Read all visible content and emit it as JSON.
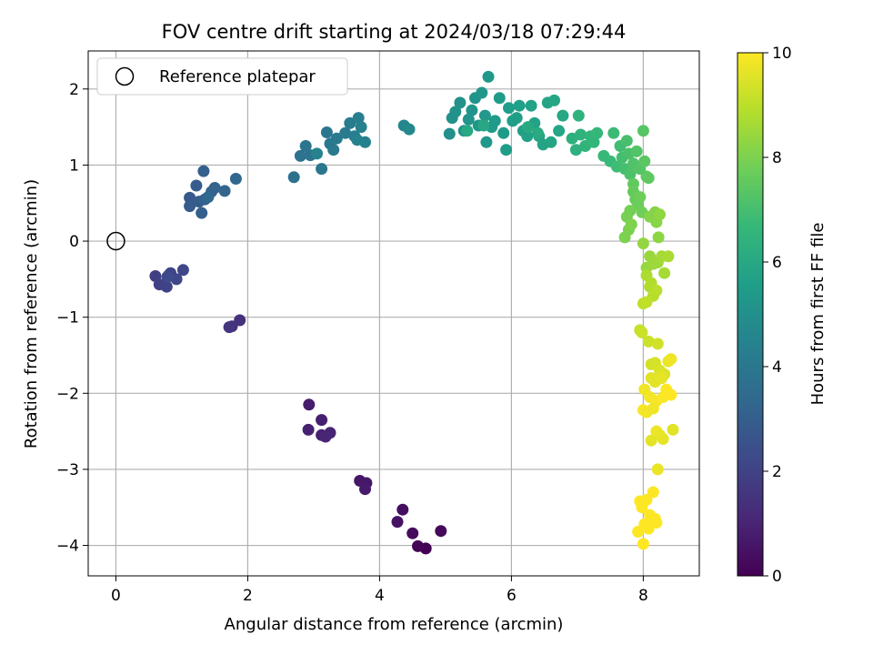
{
  "chart_data": {
    "type": "scatter",
    "title": "FOV centre drift starting at 2024/03/18 07:29:44",
    "xlabel": "Angular distance from reference (arcmin)",
    "ylabel": "Rotation from reference (arcmin)",
    "xlim": [
      -0.42,
      8.85
    ],
    "ylim": [
      -4.4,
      2.5
    ],
    "xticks": [
      0,
      2,
      4,
      6,
      8
    ],
    "yticks": [
      -4,
      -3,
      -2,
      -1,
      0,
      1,
      2
    ],
    "grid": true,
    "legend": {
      "position": "top-left",
      "entries": [
        "Reference platepar"
      ]
    },
    "colormap": "viridis",
    "colorbar": {
      "label": "Hours from first FF file",
      "range": [
        0,
        10
      ],
      "ticks": [
        0,
        2,
        4,
        6,
        8,
        10
      ],
      "stops": [
        "#440154",
        "#482878",
        "#3e4989",
        "#31688e",
        "#26828e",
        "#1f9e89",
        "#35b779",
        "#6ece58",
        "#b5de2b",
        "#fde725"
      ]
    },
    "reference_point": {
      "x": 0,
      "y": 0
    },
    "series": [
      {
        "points": [
          [
            4.7,
            -4.04,
            0.0
          ],
          [
            4.58,
            -4.01,
            0.1
          ],
          [
            4.93,
            -3.81,
            0.2
          ],
          [
            4.5,
            -3.84,
            0.3
          ],
          [
            4.35,
            -3.53,
            0.4
          ],
          [
            4.27,
            -3.69,
            0.5
          ],
          [
            3.7,
            -3.15,
            0.6
          ],
          [
            3.8,
            -3.18,
            0.65
          ],
          [
            3.78,
            -3.26,
            0.7
          ],
          [
            2.93,
            -2.15,
            0.8
          ],
          [
            3.12,
            -2.35,
            0.85
          ],
          [
            2.92,
            -2.48,
            0.9
          ],
          [
            3.12,
            -2.55,
            0.95
          ],
          [
            3.25,
            -2.52,
            1.0
          ],
          [
            3.18,
            -2.57,
            1.05
          ],
          [
            1.88,
            -1.04,
            1.4
          ],
          [
            1.76,
            -1.12,
            1.45
          ],
          [
            1.72,
            -1.13,
            1.5
          ],
          [
            0.6,
            -0.46,
            1.9
          ],
          [
            0.66,
            -0.57,
            1.95
          ],
          [
            0.77,
            -0.6,
            2.0
          ],
          [
            0.8,
            -0.45,
            2.05
          ],
          [
            0.83,
            -0.42,
            2.1
          ],
          [
            0.92,
            -0.5,
            2.15
          ],
          [
            1.02,
            -0.38,
            2.2
          ],
          [
            0.78,
            -0.47,
            2.25
          ],
          [
            1.12,
            0.57,
            2.8
          ],
          [
            1.12,
            0.46,
            2.85
          ],
          [
            1.22,
            0.73,
            2.9
          ],
          [
            1.26,
            0.52,
            2.95
          ],
          [
            1.33,
            0.92,
            3.0
          ],
          [
            1.3,
            0.37,
            3.05
          ],
          [
            1.35,
            0.55,
            3.1
          ],
          [
            1.45,
            0.65,
            3.15
          ],
          [
            1.5,
            0.7,
            3.2
          ],
          [
            1.65,
            0.66,
            3.25
          ],
          [
            1.82,
            0.82,
            3.3
          ],
          [
            1.4,
            0.58,
            3.35
          ],
          [
            2.7,
            0.84,
            3.7
          ],
          [
            2.8,
            1.12,
            3.75
          ],
          [
            2.88,
            1.25,
            3.8
          ],
          [
            2.95,
            1.13,
            3.85
          ],
          [
            3.12,
            0.95,
            3.9
          ],
          [
            3.2,
            1.43,
            3.95
          ],
          [
            3.25,
            1.28,
            4.0
          ],
          [
            3.3,
            1.2,
            4.05
          ],
          [
            3.35,
            1.35,
            4.1
          ],
          [
            3.48,
            1.42,
            4.15
          ],
          [
            3.55,
            1.55,
            4.2
          ],
          [
            3.62,
            1.38,
            4.25
          ],
          [
            3.68,
            1.62,
            4.3
          ],
          [
            3.72,
            1.5,
            4.35
          ],
          [
            3.78,
            1.3,
            4.4
          ],
          [
            3.66,
            1.33,
            4.45
          ],
          [
            3.05,
            1.15,
            4.5
          ],
          [
            4.37,
            1.52,
            4.65
          ],
          [
            4.45,
            1.47,
            4.7
          ],
          [
            5.06,
            1.41,
            5.0
          ],
          [
            5.1,
            1.62,
            5.03
          ],
          [
            5.15,
            1.7,
            5.06
          ],
          [
            5.22,
            1.82,
            5.09
          ],
          [
            5.28,
            1.45,
            5.12
          ],
          [
            5.35,
            1.6,
            5.15
          ],
          [
            5.4,
            1.72,
            5.18
          ],
          [
            5.45,
            1.88,
            5.21
          ],
          [
            5.5,
            1.52,
            5.24
          ],
          [
            5.55,
            1.95,
            5.27
          ],
          [
            5.6,
            1.65,
            5.3
          ],
          [
            5.62,
            1.3,
            5.33
          ],
          [
            5.65,
            2.16,
            5.36
          ],
          [
            5.7,
            1.5,
            5.39
          ],
          [
            5.75,
            1.58,
            5.42
          ],
          [
            5.82,
            1.88,
            5.45
          ],
          [
            5.88,
            1.42,
            5.48
          ],
          [
            5.92,
            1.2,
            5.51
          ],
          [
            5.96,
            1.75,
            5.54
          ],
          [
            6.02,
            1.58,
            5.57
          ],
          [
            6.08,
            1.62,
            5.6
          ],
          [
            6.12,
            1.78,
            5.63
          ],
          [
            6.18,
            1.45,
            5.66
          ],
          [
            6.24,
            1.38,
            5.69
          ],
          [
            6.3,
            1.78,
            5.72
          ],
          [
            6.35,
            1.55,
            5.75
          ],
          [
            6.42,
            1.38,
            5.78
          ],
          [
            6.48,
            1.27,
            5.81
          ],
          [
            6.55,
            1.82,
            5.84
          ],
          [
            6.6,
            1.3,
            5.87
          ],
          [
            6.65,
            1.85,
            5.9
          ],
          [
            6.72,
            1.45,
            5.93
          ],
          [
            6.78,
            1.65,
            5.96
          ],
          [
            5.33,
            1.45,
            5.99
          ],
          [
            5.58,
            1.52,
            6.02
          ],
          [
            6.25,
            1.5,
            6.05
          ],
          [
            6.4,
            1.42,
            6.08
          ],
          [
            6.92,
            1.35,
            6.3
          ],
          [
            6.98,
            1.2,
            6.35
          ],
          [
            7.02,
            1.65,
            6.4
          ],
          [
            7.05,
            1.4,
            6.45
          ],
          [
            7.12,
            1.25,
            6.5
          ],
          [
            7.2,
            1.38,
            6.55
          ],
          [
            7.25,
            1.3,
            6.6
          ],
          [
            7.3,
            1.42,
            6.65
          ],
          [
            7.4,
            1.12,
            6.7
          ],
          [
            7.5,
            1.05,
            6.75
          ],
          [
            7.55,
            1.42,
            6.8
          ],
          [
            7.6,
            0.98,
            6.85
          ],
          [
            7.65,
            1.25,
            6.9
          ],
          [
            7.68,
            1.1,
            6.95
          ],
          [
            7.72,
            0.95,
            7.0
          ],
          [
            7.75,
            1.32,
            7.05
          ],
          [
            7.78,
            1.15,
            7.1
          ],
          [
            7.8,
            0.88,
            7.15
          ],
          [
            7.85,
            1.02,
            7.2
          ],
          [
            7.9,
            1.18,
            7.25
          ],
          [
            7.95,
            0.95,
            7.3
          ],
          [
            8.0,
            1.45,
            7.35
          ],
          [
            8.02,
            1.05,
            7.4
          ],
          [
            8.05,
            0.85,
            7.45
          ],
          [
            8.08,
            0.83,
            7.5
          ],
          [
            7.85,
            0.75,
            7.55
          ],
          [
            7.85,
            0.65,
            7.6
          ],
          [
            7.88,
            0.55,
            7.65
          ],
          [
            7.92,
            0.48,
            7.7
          ],
          [
            7.95,
            0.58,
            7.75
          ],
          [
            7.98,
            0.38,
            7.8
          ],
          [
            7.8,
            0.4,
            7.85
          ],
          [
            7.75,
            0.32,
            7.9
          ],
          [
            7.78,
            0.15,
            7.95
          ],
          [
            7.72,
            0.05,
            8.0
          ],
          [
            7.82,
            0.22,
            8.05
          ],
          [
            8.1,
            0.32,
            8.1
          ],
          [
            8.18,
            0.38,
            8.15
          ],
          [
            8.2,
            0.25,
            8.2
          ],
          [
            8.23,
            0.05,
            8.25
          ],
          [
            8.25,
            0.35,
            8.3
          ],
          [
            8.0,
            -0.03,
            8.35
          ],
          [
            8.05,
            -0.35,
            8.4
          ],
          [
            8.1,
            -0.2,
            8.45
          ],
          [
            8.15,
            -0.3,
            8.5
          ],
          [
            8.22,
            -0.28,
            8.55
          ],
          [
            8.28,
            -0.2,
            8.6
          ],
          [
            8.32,
            -0.42,
            8.65
          ],
          [
            8.38,
            -0.2,
            8.7
          ],
          [
            8.05,
            -0.45,
            8.75
          ],
          [
            8.1,
            -0.6,
            8.8
          ],
          [
            8.12,
            -0.55,
            8.85
          ],
          [
            8.15,
            -0.72,
            8.9
          ],
          [
            8.2,
            -0.65,
            8.95
          ],
          [
            8.0,
            -0.82,
            9.0
          ],
          [
            8.05,
            -0.8,
            9.05
          ],
          [
            7.95,
            -1.17,
            9.15
          ],
          [
            7.98,
            -1.2,
            9.2
          ],
          [
            8.08,
            -1.32,
            9.25
          ],
          [
            8.22,
            -1.35,
            9.3
          ],
          [
            8.12,
            -1.62,
            9.35
          ],
          [
            8.18,
            -1.6,
            9.4
          ],
          [
            8.25,
            -1.7,
            9.45
          ],
          [
            8.32,
            -1.75,
            9.5
          ],
          [
            8.12,
            -1.8,
            9.55
          ],
          [
            8.18,
            -1.85,
            9.6
          ],
          [
            8.28,
            -1.8,
            9.65
          ],
          [
            8.38,
            -1.58,
            9.7
          ],
          [
            8.42,
            -1.55,
            9.75
          ],
          [
            8.02,
            -1.95,
            9.8
          ],
          [
            8.1,
            -2.05,
            9.85
          ],
          [
            8.2,
            -2.1,
            9.9
          ],
          [
            8.3,
            -2.05,
            9.95
          ],
          [
            8.35,
            -1.95,
            10.0
          ],
          [
            8.42,
            -2.02,
            10.0
          ],
          [
            8.0,
            -2.22,
            9.9
          ],
          [
            8.05,
            -2.25,
            9.85
          ],
          [
            8.15,
            -2.2,
            9.8
          ],
          [
            8.2,
            -2.5,
            9.75
          ],
          [
            8.25,
            -2.55,
            9.7
          ],
          [
            8.3,
            -2.6,
            9.65
          ],
          [
            8.12,
            -2.62,
            9.6
          ],
          [
            8.45,
            -2.48,
            9.55
          ],
          [
            8.22,
            -3.0,
            9.7
          ],
          [
            7.95,
            -3.42,
            10.0
          ],
          [
            7.98,
            -3.5,
            10.0
          ],
          [
            8.05,
            -3.4,
            10.0
          ],
          [
            8.1,
            -3.6,
            10.0
          ],
          [
            8.15,
            -3.3,
            10.0
          ],
          [
            8.2,
            -3.7,
            10.0
          ],
          [
            8.12,
            -3.68,
            10.0
          ],
          [
            7.92,
            -3.82,
            10.0
          ],
          [
            8.02,
            -3.72,
            10.0
          ],
          [
            8.08,
            -3.78,
            10.0
          ],
          [
            8.0,
            -3.98,
            10.0
          ],
          [
            8.18,
            -3.65,
            10.0
          ]
        ]
      }
    ]
  }
}
